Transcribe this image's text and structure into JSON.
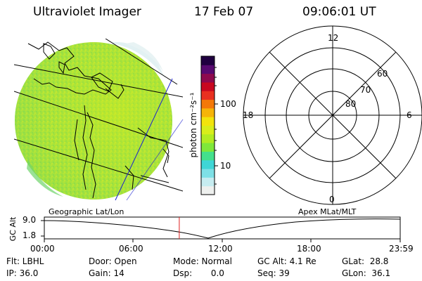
{
  "header": {
    "instrument": "Ultraviolet Imager",
    "date": "17 Feb 07",
    "time": "09:06:01 UT"
  },
  "colorbar": {
    "unit_label": "photon cm⁻²s⁻¹",
    "ticks": [
      "100",
      "10"
    ],
    "colors": [
      "#eef0ee",
      "#c6ecf0",
      "#7ee0e6",
      "#3fd6d6",
      "#44e08c",
      "#7fe83a",
      "#b2ec22",
      "#d8ee1a",
      "#f2e40c",
      "#f6b408",
      "#f47808",
      "#e83020",
      "#c80820",
      "#8e0a4e",
      "#580a70",
      "#200040"
    ]
  },
  "polar_plot": {
    "hour_labels": {
      "top": "12",
      "left": "18",
      "right": "6",
      "bottom": "0"
    },
    "lat_labels": [
      "60",
      "70",
      "80"
    ]
  },
  "timeline": {
    "left_label": "Geographic Lat/Lon",
    "right_label": "Apex MLat/MLT",
    "y_axis_label": "GC Alt",
    "y_ticks": [
      "9.0",
      "1.8"
    ],
    "x_ticks": [
      "00:00",
      "06:00",
      "12:00",
      "18:00",
      "23:59"
    ],
    "current_time_hour": 9.1
  },
  "footer": {
    "flt": "Flt: LBHL",
    "ip": "IP: 36.0",
    "door": "Door: Open",
    "gain": "Gain: 14",
    "mode": "Mode: Normal",
    "dsp": "Dsp:       0.0",
    "gc_alt": "GC Alt: 4.1 Re",
    "seq": "Seq: 39",
    "glat": "GLat:  28.8",
    "glon": "GLon:  36.1"
  }
}
